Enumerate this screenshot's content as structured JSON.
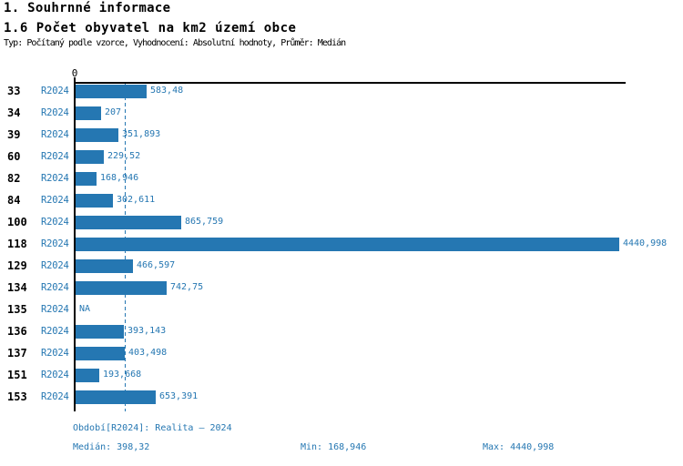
{
  "header": {
    "title": "1. Souhrnné informace",
    "subtitle": "1.6 Počet obyvatel na km2 území obce",
    "meta": "Typ: Počítaný podle vzorce, Vyhodnocení: Absolutní hodnoty, Průměr: Medián"
  },
  "colors": {
    "accent": "#2577b2",
    "axis": "#000000",
    "background": "#ffffff"
  },
  "chart_data": {
    "type": "bar",
    "orientation": "horizontal",
    "title": "1.6 Počet obyvatel na km2 území obce",
    "categories": [
      "33",
      "34",
      "39",
      "60",
      "82",
      "84",
      "100",
      "118",
      "129",
      "134",
      "135",
      "136",
      "137",
      "151",
      "153"
    ],
    "series_label": "R2024",
    "values": [
      583.48,
      207,
      351.893,
      229.52,
      168.946,
      302.611,
      865.759,
      4440.998,
      466.597,
      742.75,
      null,
      393.143,
      403.498,
      193.668,
      653.391
    ],
    "value_labels": [
      "583,48",
      "207",
      "351,893",
      "229,52",
      "168,946",
      "302,611",
      "865,759",
      "4440,998",
      "466,597",
      "742,75",
      "NA",
      "393,143",
      "403,498",
      "193,668",
      "653,391"
    ],
    "axis_zero_label": "0",
    "xlim": [
      0,
      4440.998
    ],
    "median_value": 398.32,
    "median_line_style": "dashed",
    "grid": false,
    "legend_position": "none"
  },
  "footer": {
    "period": "Období[R2024]: Realita – 2024",
    "median": "Medián: 398,32",
    "min": "Min: 168,946",
    "max": "Max: 4440,998"
  }
}
